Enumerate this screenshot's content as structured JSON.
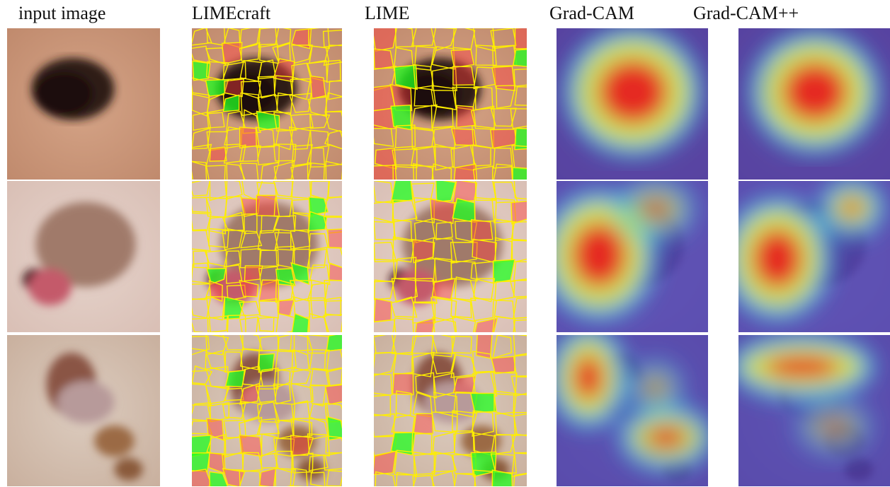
{
  "columns": [
    {
      "key": "input",
      "title": "input image"
    },
    {
      "key": "limecraft",
      "title": "LIMEcraft"
    },
    {
      "key": "lime",
      "title": "LIME"
    },
    {
      "key": "gradcam",
      "title": "Grad-CAM"
    },
    {
      "key": "gradcampp",
      "title": "Grad-CAM++"
    }
  ],
  "rows": [
    "lesion-1",
    "lesion-2",
    "lesion-3"
  ],
  "colors": {
    "skin_light": "#e2c1ac",
    "skin_dark": "#b07a60",
    "superpixel_boundary": "#ffee00",
    "positive_region": "#22ff22",
    "negative_region": "#ff4040",
    "heat_low": "#3a2fb0",
    "heat_high": "#e8181a"
  }
}
